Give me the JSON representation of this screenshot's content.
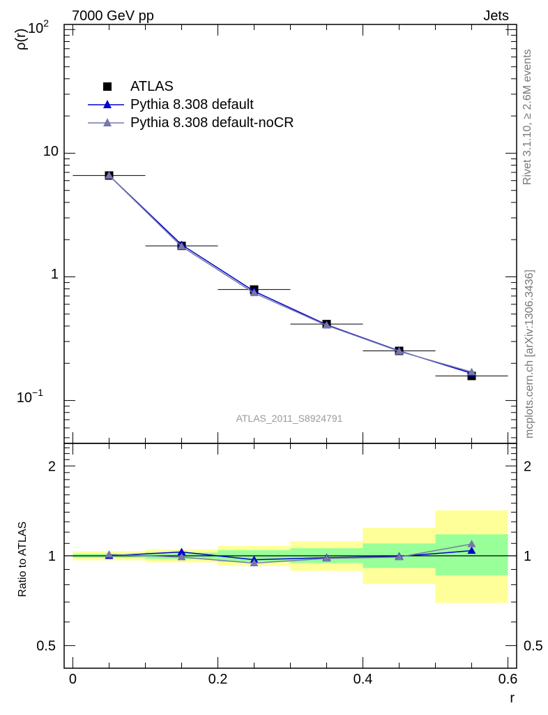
{
  "header": {
    "left_title": "7000 GeV pp",
    "right_title": "Jets"
  },
  "side_labels": {
    "rivet": "Rivet 3.1.10, ≥ 2.6M events",
    "mcplots": "mcplots.cern.ch [arXiv:1306.3436]"
  },
  "watermark": "ATLAS_2011_S8924791",
  "chart_data": [
    {
      "type": "line",
      "panel": "main",
      "ylabel": "ρ(r)",
      "yscale": "log",
      "ylim": [
        0.045,
        110
      ],
      "xlim": [
        -0.012,
        0.612
      ],
      "ytick_labels": {
        "major_1e2": "10",
        "major_1e2_exp": "2",
        "major_10": "10",
        "major_1": "1",
        "major_1e-1": "10",
        "major_1e-1_exp": "−1"
      },
      "legend_placement": "top-left",
      "series": [
        {
          "name": "ATLAS",
          "marker": "square",
          "color": "#000000",
          "x": [
            0.05,
            0.15,
            0.25,
            0.35,
            0.45,
            0.55
          ],
          "y": [
            6.6,
            1.78,
            0.79,
            0.415,
            0.252,
            0.158
          ],
          "xerr": 0.05
        },
        {
          "name": "Pythia 8.308 default",
          "marker": "triangle",
          "color": "#0000cc",
          "x": [
            0.05,
            0.15,
            0.25,
            0.35,
            0.45,
            0.55
          ],
          "y": [
            6.6,
            1.82,
            0.765,
            0.41,
            0.252,
            0.166
          ]
        },
        {
          "name": "Pythia 8.308 default-noCR",
          "marker": "triangle",
          "color": "#7777aa",
          "x": [
            0.05,
            0.15,
            0.25,
            0.35,
            0.45,
            0.55
          ],
          "y": [
            6.6,
            1.76,
            0.74,
            0.405,
            0.25,
            0.17
          ]
        }
      ]
    },
    {
      "type": "line",
      "panel": "ratio",
      "ylabel": "Ratio to ATLAS",
      "xlabel": "r",
      "ylim": [
        0.42,
        2.38
      ],
      "yticks": [
        0.5,
        1,
        2
      ],
      "ytick_labels": [
        "0.5",
        "1",
        "2"
      ],
      "xticks": [
        0,
        0.2,
        0.4,
        0.6
      ],
      "xtick_labels": [
        "0",
        "0.2",
        "0.4",
        "0.6"
      ],
      "bands": {
        "bin_edges": [
          0,
          0.1,
          0.2,
          0.3,
          0.4,
          0.5,
          0.6
        ],
        "inner_color": "#99ff99",
        "outer_color": "#ffff99",
        "inner": [
          [
            0.985,
            1.015
          ],
          [
            0.975,
            1.025
          ],
          [
            0.955,
            1.045
          ],
          [
            0.945,
            1.06
          ],
          [
            0.91,
            1.1
          ],
          [
            0.86,
            1.18
          ]
        ],
        "outer": [
          [
            0.965,
            1.035
          ],
          [
            0.95,
            1.05
          ],
          [
            0.925,
            1.08
          ],
          [
            0.89,
            1.12
          ],
          [
            0.805,
            1.24
          ],
          [
            0.695,
            1.42
          ]
        ]
      },
      "series": [
        {
          "name": "Pythia 8.308 default",
          "color": "#0000cc",
          "x": [
            0.05,
            0.15,
            0.25,
            0.35,
            0.45,
            0.55
          ],
          "y": [
            1.0,
            1.03,
            0.97,
            0.985,
            0.995,
            1.04
          ]
        },
        {
          "name": "Pythia 8.308 default-noCR",
          "color": "#7777aa",
          "x": [
            0.05,
            0.15,
            0.25,
            0.35,
            0.45,
            0.55
          ],
          "y": [
            1.01,
            0.99,
            0.945,
            0.98,
            0.99,
            1.095
          ]
        }
      ]
    }
  ]
}
